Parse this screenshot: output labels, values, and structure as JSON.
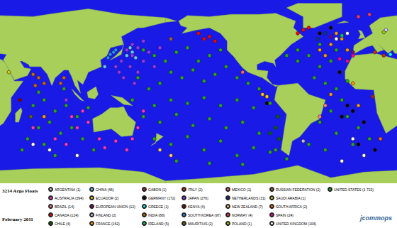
{
  "chart_data": {
    "type": "scatter",
    "title": "3214 Argo Floats",
    "subtitle": "February 2011",
    "annotations": [
      "jcommops"
    ],
    "xlim": [
      30,
      390
    ],
    "ylim": [
      -80,
      85
    ],
    "grid": false,
    "tick_labels": false,
    "legend": "bottom",
    "marker": "circle",
    "series": [
      {
        "name": "ARGENTINA (1)",
        "color": "#c0c0c0",
        "values": [
          [
            305,
            -42
          ]
        ]
      },
      {
        "name": "AUSTRALIA (394)",
        "color": "#ff33cc",
        "values": [
          [
            105,
            -15
          ],
          [
            110,
            -25
          ],
          [
            100,
            -30
          ],
          [
            120,
            -40
          ],
          [
            135,
            -42
          ],
          [
            150,
            -40
          ],
          [
            155,
            -30
          ],
          [
            160,
            -15
          ],
          [
            90,
            -45
          ],
          [
            145,
            -50
          ],
          [
            60,
            -30
          ],
          [
            125,
            -48
          ],
          [
            95,
            -20
          ],
          [
            80,
            -40
          ]
        ]
      },
      {
        "name": "BRAZIL (14)",
        "color": "#ff8080",
        "values": [
          [
            325,
            -10
          ],
          [
            320,
            -20
          ]
        ]
      },
      {
        "name": "CANADA (124)",
        "color": "#ff0000",
        "values": [
          [
            215,
            50
          ],
          [
            220,
            52
          ],
          [
            225,
            48
          ],
          [
            210,
            55
          ],
          [
            305,
            58
          ],
          [
            310,
            60
          ],
          [
            300,
            55
          ]
        ]
      },
      {
        "name": "CHILE (4)",
        "color": "#006600",
        "values": [
          [
            280,
            -30
          ],
          [
            283,
            -40
          ],
          [
            282,
            -20
          ],
          [
            275,
            -35
          ]
        ]
      },
      {
        "name": "CHINA (46)",
        "color": "#66ccff",
        "values": [
          [
            145,
            35
          ],
          [
            150,
            38
          ],
          [
            153,
            33
          ],
          [
            148,
            42
          ],
          [
            125,
            25
          ]
        ]
      },
      {
        "name": "ECUADOR (2)",
        "color": "#ffcc00",
        "values": [
          [
            272,
            -2
          ],
          [
            268,
            0
          ]
        ]
      },
      {
        "name": "EUROPEAN UNION (12)",
        "color": "#800080",
        "values": [
          [
            330,
            52
          ],
          [
            350,
            38
          ]
        ]
      },
      {
        "name": "FINLAND (2)",
        "color": "#ccccff",
        "values": [
          [
            380,
            58
          ]
        ]
      },
      {
        "name": "FRANCE (162)",
        "color": "#ff9900",
        "values": [
          [
            330,
            45
          ],
          [
            340,
            50
          ],
          [
            335,
            55
          ],
          [
            345,
            40
          ],
          [
            320,
            40
          ],
          [
            350,
            10
          ],
          [
            330,
            0
          ],
          [
            355,
            -10
          ],
          [
            325,
            35
          ],
          [
            70,
            -20
          ]
        ]
      },
      {
        "name": "GABON (1)",
        "color": "#a52a2a",
        "values": [
          [
            368,
            -2
          ]
        ]
      },
      {
        "name": "GERMANY (172)",
        "color": "#000000",
        "values": [
          [
            320,
            55
          ],
          [
            330,
            60
          ],
          [
            345,
            -10
          ],
          [
            350,
            -15
          ],
          [
            340,
            -20
          ],
          [
            360,
            -25
          ],
          [
            355,
            -45
          ],
          [
            370,
            -50
          ],
          [
            272,
            -8
          ],
          [
            338,
            20
          ]
        ]
      },
      {
        "name": "GREECE (1)",
        "color": "#00ffff",
        "values": [
          [
            384,
            36
          ]
        ]
      },
      {
        "name": "INDIA (88)",
        "color": "#cc6600",
        "values": [
          [
            65,
            15
          ],
          [
            60,
            18
          ],
          [
            88,
            15
          ],
          [
            85,
            10
          ],
          [
            70,
            10
          ],
          [
            62,
            8
          ]
        ]
      },
      {
        "name": "IRELAND (5)",
        "color": "#00cc66",
        "values": [
          [
            340,
            53
          ]
        ]
      },
      {
        "name": "ITALY (2)",
        "color": "#cc3300",
        "values": [
          [
            370,
            38
          ],
          [
            378,
            35
          ]
        ]
      },
      {
        "name": "JAPAN (276)",
        "color": "#9933ff",
        "values": [
          [
            145,
            40
          ],
          [
            150,
            35
          ],
          [
            155,
            42
          ],
          [
            160,
            30
          ],
          [
            165,
            38
          ],
          [
            140,
            30
          ],
          [
            148,
            25
          ],
          [
            155,
            20
          ],
          [
            138,
            20
          ],
          [
            170,
            25
          ],
          [
            150,
            45
          ],
          [
            160,
            48
          ],
          [
            135,
            25
          ],
          [
            175,
            42
          ],
          [
            142,
            15
          ],
          [
            152,
            10
          ],
          [
            90,
            -5
          ]
        ]
      },
      {
        "name": "KENYA (4)",
        "color": "#8b0000",
        "values": [
          [
            48,
            -5
          ]
        ]
      },
      {
        "name": "SOUTH KOREA (97)",
        "color": "#1e90ff",
        "values": [
          [
            130,
            36
          ],
          [
            133,
            38
          ],
          [
            128,
            33
          ],
          [
            135,
            40
          ]
        ]
      },
      {
        "name": "MAURITIUS (2)",
        "color": "#666600",
        "values": [
          [
            58,
            -20
          ]
        ]
      },
      {
        "name": "MEXICO (1)",
        "color": "#ff6666",
        "values": [
          [
            250,
            20
          ]
        ]
      },
      {
        "name": "NETHERLANDS (31)",
        "color": "#003399",
        "values": [
          [
            318,
            50
          ],
          [
            325,
            55
          ]
        ]
      },
      {
        "name": "NEW ZEALAND (7)",
        "color": "#ffcc66",
        "values": [
          [
            175,
            -50
          ],
          [
            185,
            -55
          ]
        ]
      },
      {
        "name": "NORWAY (4)",
        "color": "#ff3366",
        "values": [
          [
            355,
            70
          ],
          [
            365,
            72
          ]
        ]
      },
      {
        "name": "POLAND (1)",
        "color": "#99cc00",
        "values": [
          [
            378,
            56
          ]
        ]
      },
      {
        "name": "RUSSIAN FEDERATION (2)",
        "color": "#996633",
        "values": [
          [
            185,
            50
          ]
        ]
      },
      {
        "name": "SAUDI ARABIA (1)",
        "color": "#cccc00",
        "values": [
          [
            38,
            20
          ]
        ]
      },
      {
        "name": "SOUTH AFRICA (2)",
        "color": "#ff6600",
        "values": [
          [
            375,
            -40
          ]
        ]
      },
      {
        "name": "SPAIN (24)",
        "color": "#ff00aa",
        "values": [
          [
            345,
            30
          ],
          [
            350,
            35
          ],
          [
            338,
            32
          ]
        ]
      },
      {
        "name": "UNITED KINGDOM (104)",
        "color": "#ffffff",
        "values": [
          [
            335,
            50
          ],
          [
            345,
            55
          ],
          [
            350,
            -40
          ],
          [
            360,
            -55
          ],
          [
            340,
            -60
          ],
          [
            60,
            -45
          ],
          [
            75,
            -50
          ],
          [
            100,
            -55
          ]
        ]
      },
      {
        "name": "UNITED STATES (1 722)",
        "color": "#22aa22",
        "values": [
          [
            160,
            40
          ],
          [
            170,
            35
          ],
          [
            180,
            30
          ],
          [
            190,
            38
          ],
          [
            200,
            42
          ],
          [
            210,
            30
          ],
          [
            220,
            35
          ],
          [
            230,
            40
          ],
          [
            185,
            20
          ],
          [
            195,
            15
          ],
          [
            205,
            22
          ],
          [
            215,
            12
          ],
          [
            225,
            18
          ],
          [
            235,
            25
          ],
          [
            245,
            15
          ],
          [
            255,
            10
          ],
          [
            265,
            5
          ],
          [
            175,
            10
          ],
          [
            165,
            5
          ],
          [
            155,
            15
          ],
          [
            150,
            -5
          ],
          [
            170,
            -10
          ],
          [
            185,
            -5
          ],
          [
            200,
            -8
          ],
          [
            215,
            -3
          ],
          [
            230,
            -10
          ],
          [
            245,
            -5
          ],
          [
            260,
            -12
          ],
          [
            275,
            -8
          ],
          [
            160,
            -20
          ],
          [
            175,
            -25
          ],
          [
            190,
            -18
          ],
          [
            205,
            -28
          ],
          [
            220,
            -22
          ],
          [
            235,
            -30
          ],
          [
            250,
            -25
          ],
          [
            265,
            -35
          ],
          [
            280,
            -50
          ],
          [
            170,
            -40
          ],
          [
            185,
            -45
          ],
          [
            200,
            -38
          ],
          [
            215,
            -50
          ],
          [
            230,
            -42
          ],
          [
            245,
            -55
          ],
          [
            260,
            -48
          ],
          [
            275,
            -52
          ],
          [
            190,
            -60
          ],
          [
            220,
            -62
          ],
          [
            250,
            -63
          ],
          [
            290,
            -58
          ],
          [
            300,
            30
          ],
          [
            310,
            35
          ],
          [
            320,
            25
          ],
          [
            330,
            30
          ],
          [
            315,
            15
          ],
          [
            325,
            10
          ],
          [
            335,
            5
          ],
          [
            345,
            12
          ],
          [
            340,
            -5
          ],
          [
            330,
            -15
          ],
          [
            320,
            -25
          ],
          [
            345,
            -20
          ],
          [
            355,
            -30
          ],
          [
            335,
            -35
          ],
          [
            310,
            -45
          ],
          [
            325,
            -50
          ],
          [
            350,
            -45
          ],
          [
            365,
            -40
          ],
          [
            300,
            40
          ],
          [
            290,
            35
          ],
          [
            320,
            45
          ],
          [
            335,
            40
          ],
          [
            60,
            -10
          ],
          [
            70,
            -5
          ],
          [
            80,
            -15
          ],
          [
            90,
            -10
          ],
          [
            100,
            -20
          ],
          [
            65,
            -30
          ],
          [
            75,
            -25
          ],
          [
            85,
            -35
          ],
          [
            95,
            -30
          ],
          [
            105,
            -40
          ],
          [
            55,
            -40
          ],
          [
            70,
            -45
          ],
          [
            88,
            5
          ],
          [
            65,
            2
          ],
          [
            110,
            -12
          ],
          [
            50,
            -50
          ],
          [
            80,
            -55
          ],
          [
            115,
            -50
          ]
        ]
      }
    ]
  }
}
